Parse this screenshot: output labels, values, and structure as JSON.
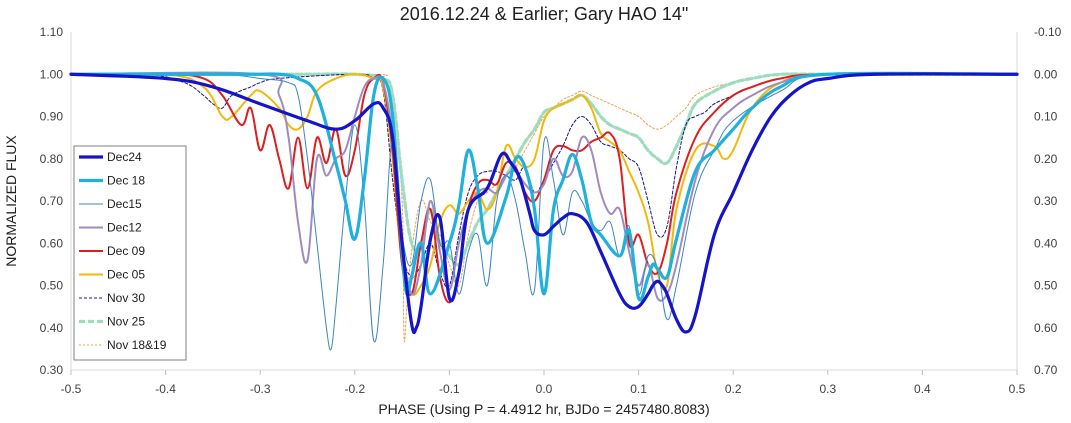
{
  "chart_data": {
    "type": "line",
    "title": "2016.12.24 & Earlier; Gary HAO 14\"",
    "xlabel": "PHASE (Using P = 4.4912 hr, BJDo = 2457480.8083)",
    "ylabel": "NORMALIZED FLUX",
    "xlim": [
      -0.5,
      0.5
    ],
    "ylim": [
      0.3,
      1.1
    ],
    "y2lim": [
      -0.1,
      0.7
    ],
    "y2_reversed": true,
    "xticks": [
      "-0.5",
      "-0.4",
      "-0.3",
      "-0.2",
      "-0.1",
      "0.0",
      "0.1",
      "0.2",
      "0.3",
      "0.4",
      "0.5"
    ],
    "yticks": [
      "0.30",
      "0.40",
      "0.50",
      "0.60",
      "0.70",
      "0.80",
      "0.90",
      "1.00",
      "1.10"
    ],
    "y2ticks": [
      "0.70",
      "0.60",
      "0.50",
      "0.40",
      "0.30",
      "0.20",
      "0.10",
      "0.00",
      "-0.10"
    ],
    "grid": false,
    "legend_position": "left",
    "series": [
      {
        "name": "Dec24",
        "color": "#1414c8",
        "width": 3.2,
        "dash": "",
        "x": [
          -0.5,
          -0.4,
          -0.35,
          -0.3,
          -0.25,
          -0.22,
          -0.2,
          -0.18,
          -0.17,
          -0.16,
          -0.15,
          -0.14,
          -0.135,
          -0.13,
          -0.12,
          -0.11,
          -0.1,
          -0.09,
          -0.08,
          -0.06,
          -0.045,
          -0.035,
          -0.025,
          -0.015,
          -0.01,
          0.0,
          0.01,
          0.02,
          0.03,
          0.045,
          0.06,
          0.08,
          0.09,
          0.1,
          0.11,
          0.115,
          0.12,
          0.125,
          0.13,
          0.14,
          0.15,
          0.16,
          0.18,
          0.2,
          0.22,
          0.24,
          0.26,
          0.28,
          0.3,
          0.35,
          0.5
        ],
        "y": [
          1.0,
          0.99,
          0.97,
          0.93,
          0.89,
          0.87,
          0.89,
          0.93,
          0.92,
          0.85,
          0.6,
          0.41,
          0.4,
          0.45,
          0.61,
          0.66,
          0.47,
          0.53,
          0.68,
          0.73,
          0.81,
          0.79,
          0.75,
          0.67,
          0.63,
          0.62,
          0.64,
          0.66,
          0.67,
          0.65,
          0.58,
          0.48,
          0.45,
          0.45,
          0.48,
          0.5,
          0.51,
          0.5,
          0.48,
          0.42,
          0.39,
          0.43,
          0.62,
          0.72,
          0.82,
          0.9,
          0.95,
          0.98,
          0.99,
          1.0,
          1.0
        ]
      },
      {
        "name": "Dec 18",
        "color": "#1fb0dc",
        "width": 3.2,
        "dash": "",
        "x": [
          -0.5,
          -0.35,
          -0.3,
          -0.28,
          -0.26,
          -0.24,
          -0.22,
          -0.21,
          -0.2,
          -0.19,
          -0.18,
          -0.17,
          -0.16,
          -0.15,
          -0.145,
          -0.14,
          -0.13,
          -0.12,
          -0.1,
          -0.09,
          -0.08,
          -0.07,
          -0.06,
          -0.04,
          -0.03,
          -0.02,
          -0.01,
          0.0,
          0.01,
          0.02,
          0.03,
          0.04,
          0.05,
          0.06,
          0.08,
          0.09,
          0.1,
          0.11,
          0.115,
          0.12,
          0.13,
          0.14,
          0.16,
          0.18,
          0.2,
          0.22,
          0.25,
          0.3,
          0.5
        ],
        "y": [
          1.0,
          1.0,
          1.0,
          1.0,
          0.99,
          0.95,
          0.79,
          0.7,
          0.61,
          0.75,
          0.95,
          0.99,
          0.9,
          0.58,
          0.48,
          0.52,
          0.6,
          0.48,
          0.6,
          0.69,
          0.82,
          0.73,
          0.6,
          0.71,
          0.8,
          0.78,
          0.68,
          0.48,
          0.68,
          0.75,
          0.81,
          0.75,
          0.65,
          0.62,
          0.57,
          0.63,
          0.47,
          0.52,
          0.55,
          0.54,
          0.52,
          0.61,
          0.77,
          0.82,
          0.87,
          0.92,
          0.97,
          1.0,
          1.0
        ]
      },
      {
        "name": "Dec15",
        "color": "#3c86c0",
        "width": 1.0,
        "dash": "",
        "x": [
          -0.5,
          -0.35,
          -0.3,
          -0.27,
          -0.26,
          -0.25,
          -0.24,
          -0.23,
          -0.225,
          -0.22,
          -0.21,
          -0.2,
          -0.19,
          -0.18,
          -0.17,
          -0.16,
          -0.15,
          -0.14,
          -0.13,
          -0.12,
          -0.11,
          -0.1,
          -0.09,
          -0.08,
          -0.07,
          -0.06,
          -0.05,
          -0.04,
          -0.03,
          -0.02,
          -0.01,
          0.0,
          0.01,
          0.02,
          0.03,
          0.04,
          0.05,
          0.06,
          0.07,
          0.08,
          0.09,
          0.1,
          0.11,
          0.12,
          0.13,
          0.14,
          0.16,
          0.18,
          0.2,
          0.25,
          0.3,
          0.5
        ],
        "y": [
          1.0,
          1.0,
          0.99,
          0.98,
          0.95,
          0.8,
          0.6,
          0.4,
          0.35,
          0.45,
          0.7,
          0.88,
          0.7,
          0.37,
          0.55,
          0.85,
          0.62,
          0.55,
          0.7,
          0.75,
          0.6,
          0.6,
          0.48,
          0.58,
          0.62,
          0.5,
          0.7,
          0.76,
          0.7,
          0.58,
          0.49,
          0.84,
          0.75,
          0.62,
          0.72,
          0.7,
          0.65,
          0.63,
          0.65,
          0.57,
          0.64,
          0.48,
          0.57,
          0.54,
          0.42,
          0.5,
          0.72,
          0.82,
          0.89,
          0.96,
          1.0,
          1.0
        ]
      },
      {
        "name": "Dec12",
        "color": "#9e8cbf",
        "width": 2.0,
        "dash": "",
        "x": [
          -0.5,
          -0.3,
          -0.28,
          -0.27,
          -0.26,
          -0.25,
          -0.24,
          -0.23,
          -0.22,
          -0.21,
          -0.2,
          -0.19,
          -0.18,
          -0.17,
          -0.16,
          -0.15,
          -0.14,
          -0.13,
          -0.12,
          -0.11,
          -0.1,
          -0.09,
          -0.08,
          -0.07,
          -0.06,
          -0.05,
          -0.04,
          -0.03,
          -0.02,
          -0.01,
          0.0,
          0.01,
          0.02,
          0.03,
          0.04,
          0.05,
          0.06,
          0.07,
          0.08,
          0.09,
          0.1,
          0.11,
          0.12,
          0.13,
          0.14,
          0.16,
          0.18,
          0.2,
          0.22,
          0.25,
          0.3,
          0.5
        ],
        "y": [
          1.0,
          1.0,
          0.95,
          0.85,
          0.65,
          0.56,
          0.8,
          0.76,
          0.8,
          0.82,
          0.9,
          0.97,
          0.99,
          0.98,
          0.85,
          0.6,
          0.48,
          0.55,
          0.7,
          0.58,
          0.49,
          0.6,
          0.68,
          0.72,
          0.73,
          0.72,
          0.76,
          0.77,
          0.74,
          0.72,
          0.74,
          0.8,
          0.76,
          0.77,
          0.85,
          0.82,
          0.72,
          0.67,
          0.68,
          0.58,
          0.5,
          0.55,
          0.47,
          0.48,
          0.55,
          0.75,
          0.87,
          0.92,
          0.95,
          0.98,
          1.0,
          1.0
        ]
      },
      {
        "name": "Dec 09",
        "color": "#dc1e1e",
        "width": 2.0,
        "dash": "",
        "x": [
          -0.5,
          -0.4,
          -0.36,
          -0.34,
          -0.32,
          -0.31,
          -0.3,
          -0.29,
          -0.28,
          -0.27,
          -0.26,
          -0.25,
          -0.24,
          -0.23,
          -0.22,
          -0.21,
          -0.2,
          -0.19,
          -0.18,
          -0.17,
          -0.16,
          -0.15,
          -0.14,
          -0.13,
          -0.12,
          -0.11,
          -0.1,
          -0.09,
          -0.08,
          -0.07,
          -0.06,
          -0.05,
          -0.04,
          -0.03,
          -0.02,
          -0.01,
          0.0,
          0.01,
          0.02,
          0.03,
          0.04,
          0.05,
          0.06,
          0.07,
          0.08,
          0.09,
          0.1,
          0.11,
          0.12,
          0.13,
          0.14,
          0.16,
          0.18,
          0.2,
          0.22,
          0.25,
          0.3,
          0.5
        ],
        "y": [
          1.0,
          1.0,
          0.99,
          0.95,
          0.88,
          0.92,
          0.82,
          0.88,
          0.8,
          0.73,
          0.85,
          0.73,
          0.85,
          0.79,
          0.87,
          0.76,
          0.82,
          0.95,
          0.99,
          0.98,
          0.82,
          0.55,
          0.48,
          0.6,
          0.68,
          0.52,
          0.46,
          0.53,
          0.68,
          0.74,
          0.75,
          0.74,
          0.79,
          0.78,
          0.72,
          0.7,
          0.75,
          0.82,
          0.83,
          0.82,
          0.82,
          0.84,
          0.85,
          0.86,
          0.8,
          0.6,
          0.62,
          0.55,
          0.53,
          0.6,
          0.72,
          0.85,
          0.91,
          0.95,
          0.97,
          0.99,
          1.0,
          1.0
        ]
      },
      {
        "name": "Dec 05",
        "color": "#f2b90b",
        "width": 2.0,
        "dash": "",
        "x": [
          -0.5,
          -0.4,
          -0.36,
          -0.34,
          -0.33,
          -0.31,
          -0.3,
          -0.28,
          -0.27,
          -0.26,
          -0.25,
          -0.24,
          -0.22,
          -0.2,
          -0.18,
          -0.17,
          -0.16,
          -0.15,
          -0.14,
          -0.13,
          -0.12,
          -0.11,
          -0.1,
          -0.09,
          -0.08,
          -0.07,
          -0.06,
          -0.05,
          -0.04,
          -0.03,
          -0.02,
          -0.01,
          0.0,
          0.01,
          0.02,
          0.03,
          0.04,
          0.05,
          0.06,
          0.07,
          0.08,
          0.09,
          0.1,
          0.11,
          0.12,
          0.13,
          0.14,
          0.16,
          0.18,
          0.19,
          0.2,
          0.22,
          0.25,
          0.3,
          0.5
        ],
        "y": [
          1.0,
          1.0,
          0.97,
          0.9,
          0.9,
          0.95,
          0.96,
          0.92,
          0.88,
          0.87,
          0.9,
          0.96,
          0.99,
          1.0,
          0.99,
          0.97,
          0.8,
          0.55,
          0.48,
          0.5,
          0.55,
          0.65,
          0.69,
          0.67,
          0.7,
          0.72,
          0.68,
          0.72,
          0.83,
          0.8,
          0.78,
          0.8,
          0.89,
          0.92,
          0.93,
          0.94,
          0.95,
          0.92,
          0.86,
          0.84,
          0.82,
          0.77,
          0.72,
          0.65,
          0.53,
          0.5,
          0.68,
          0.82,
          0.83,
          0.8,
          0.82,
          0.92,
          0.98,
          1.0,
          1.0
        ]
      },
      {
        "name": "Nov 30",
        "color": "#14148c",
        "width": 1.0,
        "dash": "3,2",
        "x": [
          -0.5,
          -0.42,
          -0.38,
          -0.36,
          -0.35,
          -0.34,
          -0.33,
          -0.31,
          -0.3,
          -0.28,
          -0.2,
          -0.18,
          -0.17,
          -0.16,
          -0.15,
          -0.14,
          -0.13,
          -0.12,
          -0.11,
          -0.1,
          -0.09,
          -0.08,
          -0.07,
          -0.06,
          -0.05,
          -0.04,
          -0.03,
          -0.02,
          -0.01,
          0.0,
          0.01,
          0.02,
          0.03,
          0.04,
          0.05,
          0.06,
          0.07,
          0.08,
          0.09,
          0.1,
          0.11,
          0.12,
          0.13,
          0.14,
          0.15,
          0.16,
          0.17,
          0.18,
          0.2,
          0.22,
          0.25,
          0.3,
          0.5
        ],
        "y": [
          1.0,
          1.0,
          0.98,
          0.95,
          0.93,
          0.92,
          0.95,
          0.97,
          0.98,
          0.99,
          1.0,
          0.99,
          0.96,
          0.75,
          0.58,
          0.52,
          0.55,
          0.6,
          0.53,
          0.5,
          0.62,
          0.72,
          0.76,
          0.77,
          0.77,
          0.76,
          0.75,
          0.78,
          0.72,
          0.75,
          0.79,
          0.83,
          0.88,
          0.9,
          0.88,
          0.84,
          0.83,
          0.82,
          0.8,
          0.78,
          0.7,
          0.62,
          0.64,
          0.78,
          0.88,
          0.9,
          0.91,
          0.93,
          0.95,
          0.97,
          0.99,
          1.0,
          1.0
        ]
      },
      {
        "name": "Nov 25",
        "color": "#9fdcbc",
        "width": 3.2,
        "dash": "6,3",
        "x": [
          -0.5,
          -0.3,
          -0.25,
          -0.2,
          -0.17,
          -0.16,
          -0.15,
          -0.14,
          -0.13,
          -0.12,
          -0.11,
          -0.1,
          -0.09,
          -0.08,
          -0.07,
          -0.06,
          -0.05,
          -0.04,
          -0.03,
          -0.02,
          -0.01,
          0.0,
          0.01,
          0.02,
          0.03,
          0.04,
          0.05,
          0.06,
          0.07,
          0.08,
          0.09,
          0.1,
          0.11,
          0.12,
          0.13,
          0.14,
          0.15,
          0.16,
          0.18,
          0.2,
          0.22,
          0.25,
          0.3,
          0.5
        ],
        "y": [
          1.0,
          1.0,
          1.0,
          1.0,
          0.99,
          0.95,
          0.75,
          0.6,
          0.6,
          0.68,
          0.6,
          0.57,
          0.55,
          0.6,
          0.65,
          0.68,
          0.72,
          0.76,
          0.8,
          0.84,
          0.87,
          0.91,
          0.92,
          0.93,
          0.94,
          0.95,
          0.93,
          0.9,
          0.88,
          0.87,
          0.86,
          0.85,
          0.82,
          0.8,
          0.79,
          0.83,
          0.88,
          0.93,
          0.96,
          0.98,
          0.99,
          1.0,
          1.0,
          1.0
        ]
      },
      {
        "name": "Nov 18&19",
        "color": "#f0a050",
        "width": 1.0,
        "dash": "2,2",
        "x": [
          -0.5,
          -0.2,
          -0.17,
          -0.16,
          -0.15,
          -0.148,
          -0.145,
          -0.14,
          -0.13,
          -0.12,
          -0.11,
          -0.1,
          -0.09,
          -0.08,
          -0.07,
          -0.06,
          -0.05,
          -0.04,
          -0.03,
          -0.02,
          -0.01,
          0.0,
          0.01,
          0.02,
          0.03,
          0.04,
          0.05,
          0.06,
          0.07,
          0.08,
          0.09,
          0.1,
          0.11,
          0.12,
          0.13,
          0.14,
          0.15,
          0.16,
          0.18,
          0.2,
          0.22,
          0.25,
          0.3,
          0.5
        ],
        "y": [
          1.0,
          1.0,
          0.99,
          0.95,
          0.7,
          0.38,
          0.45,
          0.58,
          0.7,
          0.65,
          0.62,
          0.55,
          0.5,
          0.62,
          0.7,
          0.72,
          0.74,
          0.76,
          0.78,
          0.82,
          0.86,
          0.9,
          0.92,
          0.94,
          0.95,
          0.96,
          0.95,
          0.94,
          0.93,
          0.92,
          0.91,
          0.9,
          0.88,
          0.87,
          0.88,
          0.9,
          0.92,
          0.95,
          0.97,
          0.98,
          0.99,
          1.0,
          1.0,
          1.0
        ]
      }
    ]
  }
}
